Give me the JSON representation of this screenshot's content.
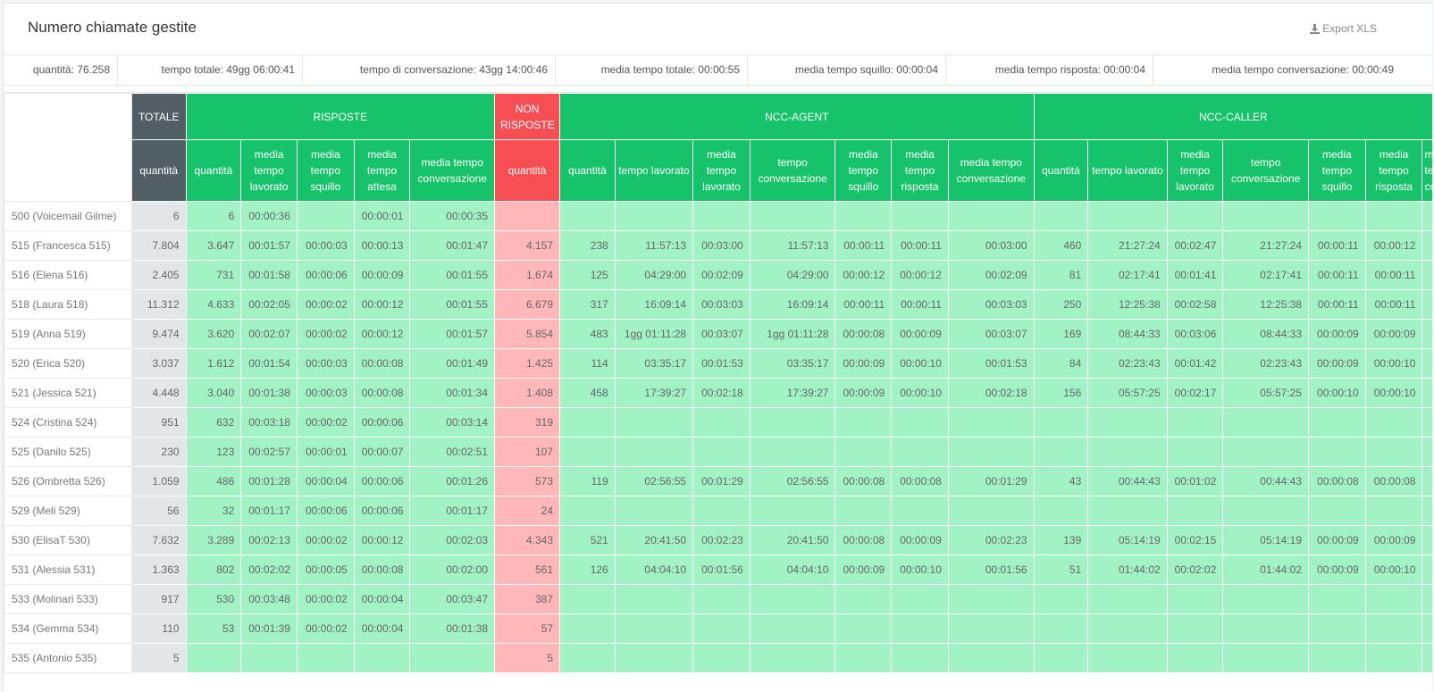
{
  "header": {
    "title": "Numero chiamate gestite",
    "export_label": "Export XLS"
  },
  "stats": [
    "quantità: 76.258",
    "tempo totale: 49gg 06:00:41",
    "tempo di conversazione: 43gg 14:00:46",
    "media tempo totale: 00:00:55",
    "media tempo squillo: 00:00:04",
    "media tempo risposta: 00:00:04",
    "media tempo conversazione: 00:00:49"
  ],
  "groups": {
    "totale": "TOTALE",
    "risposte": "RISPOSTE",
    "non_risposte": "NON RISPOSTE",
    "ncc_agent": "NCC-AGENT",
    "ncc_caller": "NCC-CALLER"
  },
  "columns": [
    "quantità",
    "quantità",
    "media tempo lavorato",
    "media tempo squillo",
    "media tempo attesa",
    "media tempo conversazione",
    "quantità",
    "quantità",
    "tempo lavorato",
    "media tempo lavorato",
    "tempo conversazione",
    "media tempo squillo",
    "media tempo risposta",
    "media tempo conversazione",
    "quantità",
    "tempo lavorato",
    "media tempo lavorato",
    "tempo conversazione",
    "media tempo squillo",
    "media tempo risposta",
    "media tempo conversazione"
  ],
  "rows": [
    {
      "name": "500 (Voicemail Gilme)",
      "cells": [
        "6",
        "6",
        "00:00:36",
        "",
        "00:00:01",
        "00:00:35",
        "",
        "",
        "",
        "",
        "",
        "",
        "",
        "",
        "",
        "",
        "",
        "",
        "",
        "",
        ""
      ]
    },
    {
      "name": "515 (Francesca 515)",
      "cells": [
        "7.804",
        "3.647",
        "00:01:57",
        "00:00:03",
        "00:00:13",
        "00:01:47",
        "4.157",
        "238",
        "11:57:13",
        "00:03:00",
        "11:57:13",
        "00:00:11",
        "00:00:11",
        "00:03:00",
        "460",
        "21:27:24",
        "00:02:47",
        "21:27:24",
        "00:00:11",
        "00:00:12",
        ""
      ]
    },
    {
      "name": "516 (Elena 516)",
      "cells": [
        "2.405",
        "731",
        "00:01:58",
        "00:00:06",
        "00:00:09",
        "00:01:55",
        "1.674",
        "125",
        "04:29:00",
        "00:02:09",
        "04:29:00",
        "00:00:12",
        "00:00:12",
        "00:02:09",
        "81",
        "02:17:41",
        "00:01:41",
        "02:17:41",
        "00:00:11",
        "00:00:11",
        ""
      ]
    },
    {
      "name": "518 (Laura 518)",
      "cells": [
        "11.312",
        "4.633",
        "00:02:05",
        "00:00:02",
        "00:00:12",
        "00:01:55",
        "6.679",
        "317",
        "16:09:14",
        "00:03:03",
        "16:09:14",
        "00:00:11",
        "00:00:11",
        "00:03:03",
        "250",
        "12:25:38",
        "00:02:58",
        "12:25:38",
        "00:00:11",
        "00:00:11",
        ""
      ]
    },
    {
      "name": "519 (Anna 519)",
      "cells": [
        "9.474",
        "3.620",
        "00:02:07",
        "00:00:02",
        "00:00:12",
        "00:01:57",
        "5.854",
        "483",
        "1gg 01:11:28",
        "00:03:07",
        "1gg 01:11:28",
        "00:00:08",
        "00:00:09",
        "00:03:07",
        "169",
        "08:44:33",
        "00:03:06",
        "08:44:33",
        "00:00:09",
        "00:00:09",
        ""
      ]
    },
    {
      "name": "520 (Erica 520)",
      "cells": [
        "3.037",
        "1.612",
        "00:01:54",
        "00:00:03",
        "00:00:08",
        "00:01:49",
        "1.425",
        "114",
        "03:35:17",
        "00:01:53",
        "03:35:17",
        "00:00:09",
        "00:00:10",
        "00:01:53",
        "84",
        "02:23:43",
        "00:01:42",
        "02:23:43",
        "00:00:09",
        "00:00:10",
        ""
      ]
    },
    {
      "name": "521 (Jessica 521)",
      "cells": [
        "4.448",
        "3.040",
        "00:01:38",
        "00:00:03",
        "00:00:08",
        "00:01:34",
        "1.408",
        "458",
        "17:39:27",
        "00:02:18",
        "17:39:27",
        "00:00:09",
        "00:00:10",
        "00:02:18",
        "156",
        "05:57:25",
        "00:02:17",
        "05:57:25",
        "00:00:10",
        "00:00:10",
        ""
      ]
    },
    {
      "name": "524 (Cristina 524)",
      "cells": [
        "951",
        "632",
        "00:03:18",
        "00:00:02",
        "00:00:06",
        "00:03:14",
        "319",
        "",
        "",
        "",
        "",
        "",
        "",
        "",
        "",
        "",
        "",
        "",
        "",
        "",
        ""
      ]
    },
    {
      "name": "525 (Danilo 525)",
      "cells": [
        "230",
        "123",
        "00:02:57",
        "00:00:01",
        "00:00:07",
        "00:02:51",
        "107",
        "",
        "",
        "",
        "",
        "",
        "",
        "",
        "",
        "",
        "",
        "",
        "",
        "",
        ""
      ]
    },
    {
      "name": "526 (Ombretta 526)",
      "cells": [
        "1.059",
        "486",
        "00:01:28",
        "00:00:04",
        "00:00:06",
        "00:01:26",
        "573",
        "119",
        "02:56:55",
        "00:01:29",
        "02:56:55",
        "00:00:08",
        "00:00:08",
        "00:01:29",
        "43",
        "00:44:43",
        "00:01:02",
        "00:44:43",
        "00:00:08",
        "00:00:08",
        ""
      ]
    },
    {
      "name": "529 (Meli 529)",
      "cells": [
        "56",
        "32",
        "00:01:17",
        "00:00:06",
        "00:00:06",
        "00:01:17",
        "24",
        "",
        "",
        "",
        "",
        "",
        "",
        "",
        "",
        "",
        "",
        "",
        "",
        "",
        ""
      ]
    },
    {
      "name": "530 (ElisaT 530)",
      "cells": [
        "7.632",
        "3.289",
        "00:02:13",
        "00:00:02",
        "00:00:12",
        "00:02:03",
        "4.343",
        "521",
        "20:41:50",
        "00:02:23",
        "20:41:50",
        "00:00:08",
        "00:00:09",
        "00:02:23",
        "139",
        "05:14:19",
        "00:02:15",
        "05:14:19",
        "00:00:09",
        "00:00:09",
        ""
      ]
    },
    {
      "name": "531 (Alessia 531)",
      "cells": [
        "1.363",
        "802",
        "00:02:02",
        "00:00:05",
        "00:00:08",
        "00:02:00",
        "561",
        "126",
        "04:04:10",
        "00:01:56",
        "04:04:10",
        "00:00:09",
        "00:00:10",
        "00:01:56",
        "51",
        "01:44:02",
        "00:02:02",
        "01:44:02",
        "00:00:09",
        "00:00:10",
        ""
      ]
    },
    {
      "name": "533 (Molinari 533)",
      "cells": [
        "917",
        "530",
        "00:03:48",
        "00:00:02",
        "00:00:04",
        "00:03:47",
        "387",
        "",
        "",
        "",
        "",
        "",
        "",
        "",
        "",
        "",
        "",
        "",
        "",
        "",
        ""
      ]
    },
    {
      "name": "534 (Gemma 534)",
      "cells": [
        "110",
        "53",
        "00:01:39",
        "00:00:02",
        "00:00:04",
        "00:01:38",
        "57",
        "",
        "",
        "",
        "",
        "",
        "",
        "",
        "",
        "",
        "",
        "",
        "",
        "",
        ""
      ]
    },
    {
      "name": "535 (Antonio 535)",
      "cells": [
        "5",
        "",
        "",
        "",
        "",
        "",
        "5",
        "",
        "",
        "",
        "",
        "",
        "",
        "",
        "",
        "",
        "",
        "",
        "",
        "",
        ""
      ]
    }
  ],
  "colors": {
    "green_header": "#16c36a",
    "green_cell": "#a1f2c4",
    "total_header": "#525e66",
    "total_cell": "#e3e6e9",
    "red_header": "#f74e54",
    "red_cell": "#ffb7b9"
  }
}
